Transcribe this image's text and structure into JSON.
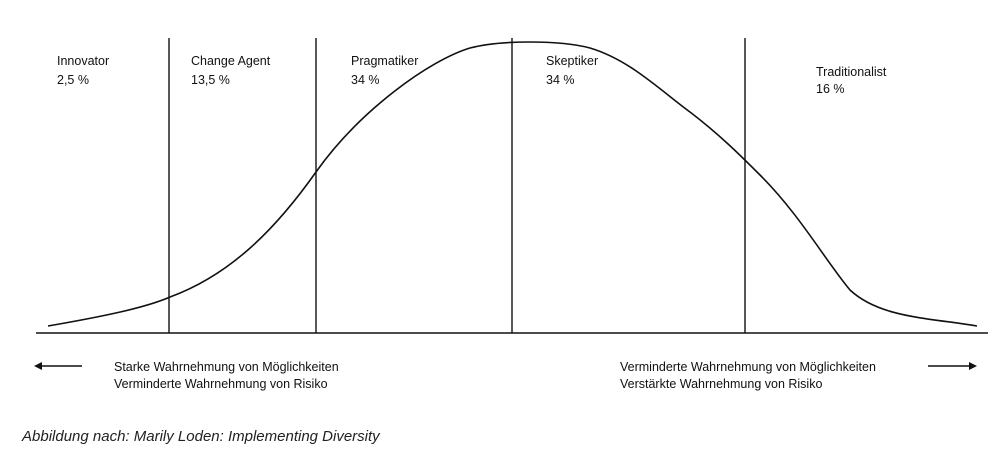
{
  "segments": [
    {
      "name": "Innovator",
      "pct": "2,5 %"
    },
    {
      "name": "Change Agent",
      "pct": "13,5 %"
    },
    {
      "name": "Pragmatiker",
      "pct": "34 %"
    },
    {
      "name": "Skeptiker",
      "pct": "34 %"
    },
    {
      "name": "Traditionalist",
      "pct": "16 %"
    }
  ],
  "left_axis": {
    "line1": "Starke Wahrnehmung von Möglichkeiten",
    "line2": "Verminderte Wahrnehmung von Risiko"
  },
  "right_axis": {
    "line1": "Verminderte Wahrnehmung von Möglichkeiten",
    "line2": "Verstärkte Wahrnehmung von Risiko"
  },
  "caption": "Abbildung nach: Marily Loden: Implementing Diversity",
  "colors": {
    "line": "#111111",
    "background": "#ffffff"
  }
}
